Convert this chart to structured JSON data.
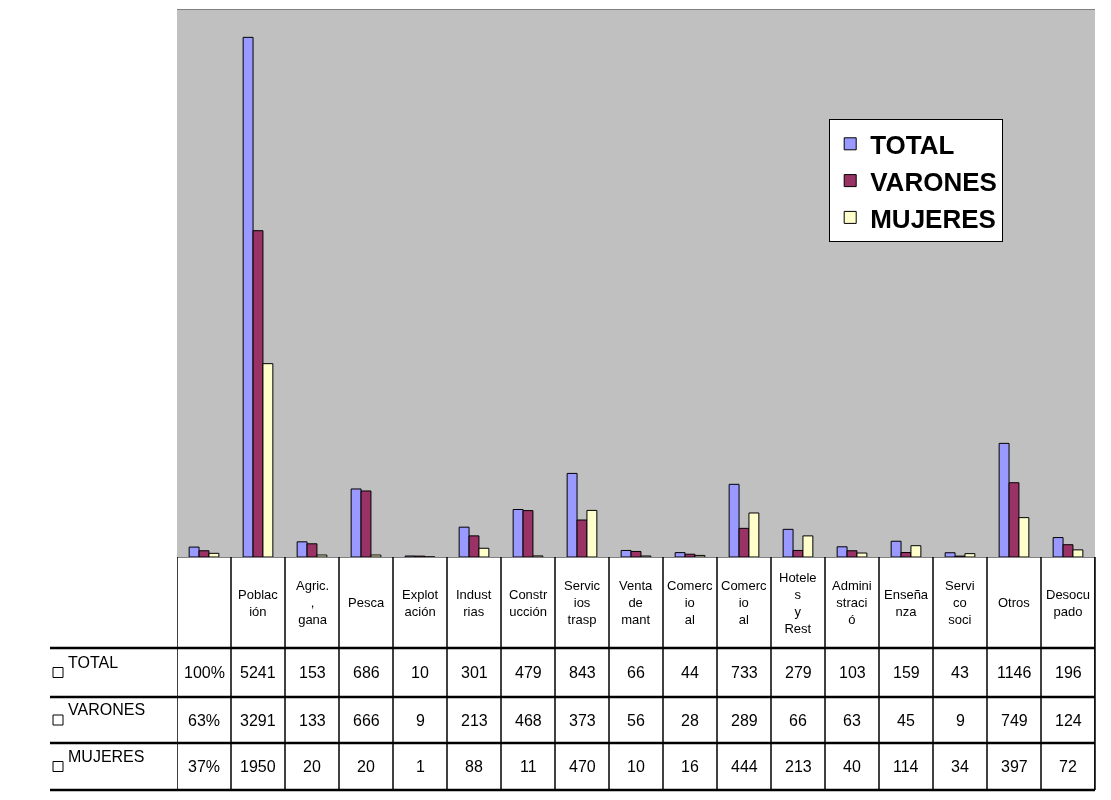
{
  "chart_data": {
    "type": "bar",
    "categories": [
      null,
      "Población",
      "Agric., gana",
      "Pesca",
      "Explotación",
      "Industrias",
      "Construcción",
      "Servicios trasp",
      "Venta de mant",
      "Comercio al",
      "Comercio al",
      "Hoteles y Rest",
      "Administració",
      "Enseñanza",
      "Servi co soci",
      "Otros",
      "Desocupado"
    ],
    "series": [
      {
        "name": "TOTAL",
        "color": "#9999ff",
        "values": [
          100,
          5241,
          153,
          686,
          10,
          301,
          479,
          843,
          66,
          44,
          733,
          279,
          103,
          159,
          43,
          1146,
          196
        ],
        "value_labels": [
          "100%",
          "5241",
          "153",
          "686",
          "10",
          "301",
          "479",
          "843",
          "66",
          "44",
          "733",
          "279",
          "103",
          "159",
          "43",
          "1146",
          "196"
        ]
      },
      {
        "name": "VARONES",
        "color": "#993366",
        "values": [
          63,
          3291,
          133,
          666,
          9,
          213,
          468,
          373,
          56,
          28,
          289,
          66,
          63,
          45,
          9,
          749,
          124
        ],
        "value_labels": [
          "63%",
          "3291",
          "133",
          "666",
          "9",
          "213",
          "468",
          "373",
          "56",
          "28",
          "289",
          "66",
          "63",
          "45",
          "9",
          "749",
          "124"
        ]
      },
      {
        "name": "MUJERES",
        "color": "#ffffcc",
        "values": [
          37,
          1950,
          20,
          20,
          1,
          88,
          11,
          470,
          10,
          16,
          444,
          213,
          40,
          114,
          34,
          397,
          72
        ],
        "value_labels": [
          "37%",
          "1950",
          "20",
          "20",
          "1",
          "88",
          "11",
          "470",
          "10",
          "16",
          "444",
          "213",
          "40",
          "114",
          "34",
          "397",
          "72"
        ]
      }
    ],
    "legend": "top right"
  }
}
